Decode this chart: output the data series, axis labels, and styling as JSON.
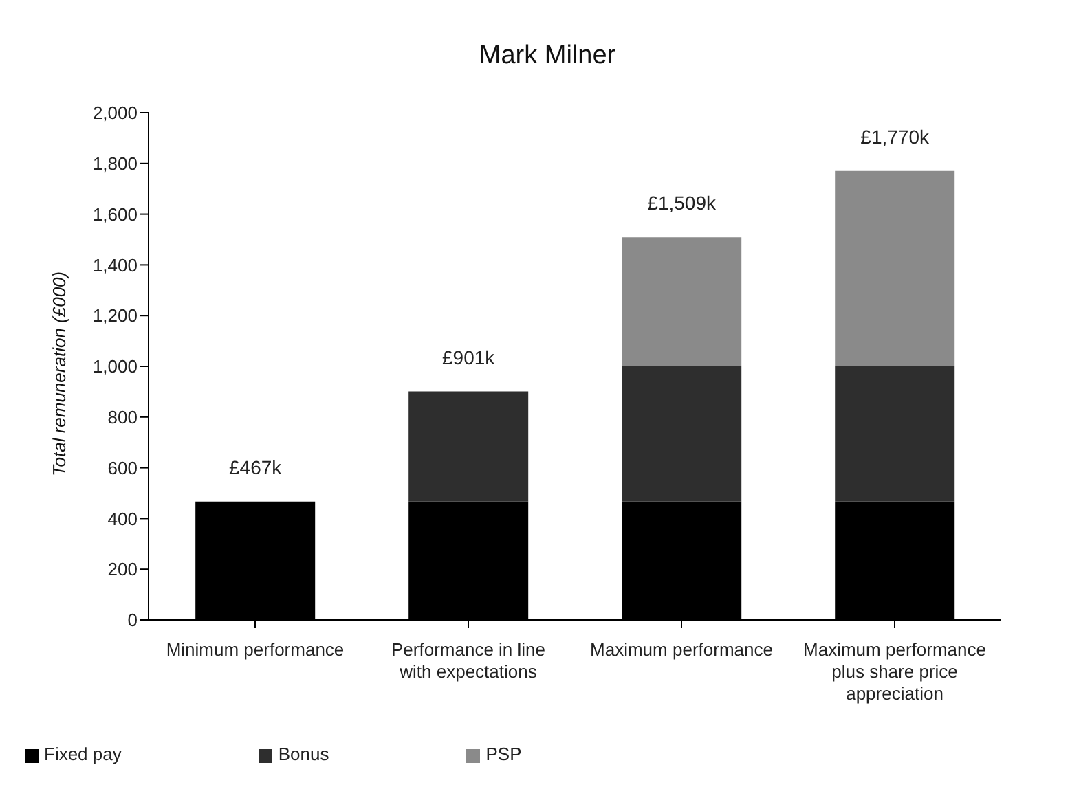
{
  "chart_data": {
    "type": "bar",
    "title": "Mark Milner",
    "ylabel": "Total remuneration (£000)",
    "categories": [
      "Minimum performance",
      "Performance in line with expectations",
      "Maximum performance",
      "Maximum performance plus share price appreciation"
    ],
    "series": [
      {
        "name": "Fixed pay",
        "color": "#000000",
        "values": [
          467,
          467,
          467,
          467
        ]
      },
      {
        "name": "Bonus",
        "color": "#2e2e2e",
        "values": [
          0,
          434,
          534,
          534
        ]
      },
      {
        "name": "PSP",
        "color": "#8a8a8a",
        "values": [
          0,
          0,
          508,
          769
        ]
      }
    ],
    "stacked": true,
    "totals": [
      "£467k",
      "£901k",
      "£1,509k",
      "£1,770k"
    ],
    "ylim": [
      0,
      2000
    ],
    "yticks": [
      0,
      200,
      400,
      600,
      800,
      {
        "value": 1000,
        "label": "1,000"
      },
      {
        "value": 1200,
        "label": "1,200"
      },
      {
        "value": 1400,
        "label": "1,400"
      },
      {
        "value": 1600,
        "label": "1,600"
      },
      {
        "value": 1800,
        "label": "1,800"
      },
      {
        "value": 2000,
        "label": "2,000"
      }
    ],
    "grid": false,
    "legend": "bottom left"
  }
}
